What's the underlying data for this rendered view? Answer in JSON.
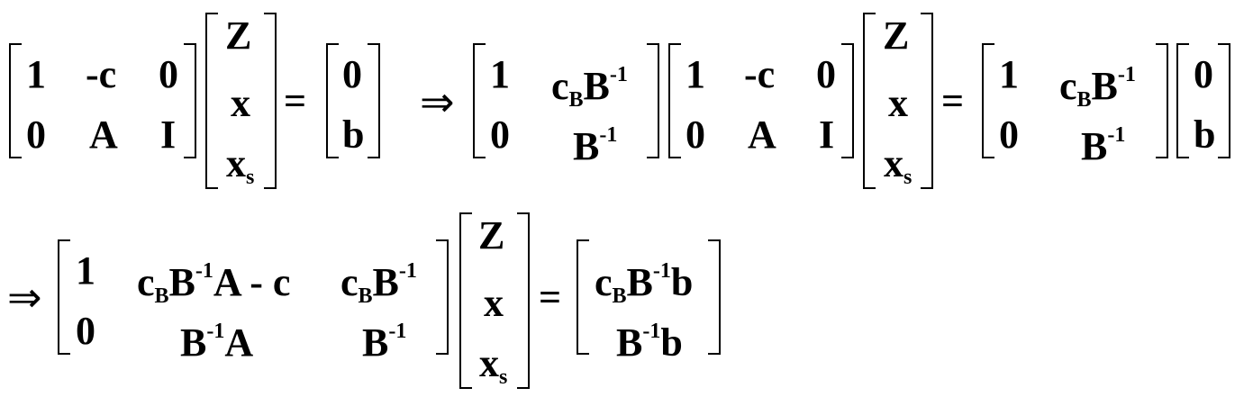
{
  "row1": {
    "m1": [
      [
        "1",
        "-c",
        "0"
      ],
      [
        "0",
        "A",
        "I"
      ]
    ],
    "v1": [
      "Z",
      "x",
      "x",
      "s"
    ],
    "eq": "=",
    "rhs1": [
      "0",
      "b"
    ],
    "arrow": "⇒",
    "m2": {
      "a11": "1",
      "a12_base": "c",
      "a12_sub": "B",
      "a12_B": "B",
      "a12_sup": "-1",
      "a21": "0",
      "a22_B": "B",
      "a22_sup": "-1"
    },
    "m3": [
      [
        "1",
        "-c",
        "0"
      ],
      [
        "0",
        "A",
        "I"
      ]
    ],
    "v2": [
      "Z",
      "x",
      "x",
      "s"
    ],
    "eq2": "=",
    "m4": {
      "a11": "1",
      "a12_base": "c",
      "a12_sub": "B",
      "a12_B": "B",
      "a12_sup": "-1",
      "a21": "0",
      "a22_B": "B",
      "a22_sup": "-1"
    },
    "rhs2": [
      "0",
      "b"
    ]
  },
  "row2": {
    "arrow": "⇒",
    "m": {
      "a11": "1",
      "a12": {
        "c": "c",
        "sub": "B",
        "B": "B",
        "sup": "-1",
        "rest": "A - c"
      },
      "a13": {
        "c": "c",
        "sub": "B",
        "B": "B",
        "sup": "-1"
      },
      "a21": "0",
      "a22": {
        "B": "B",
        "sup": "-1",
        "rest": "A"
      },
      "a23": {
        "B": "B",
        "sup": "-1"
      }
    },
    "v": [
      "Z",
      "x",
      "x",
      "s"
    ],
    "eq": "=",
    "rhs": {
      "r1": {
        "c": "c",
        "sub": "B",
        "B": "B",
        "sup": "-1",
        "rest": "b"
      },
      "r2": {
        "B": "B",
        "sup": "-1",
        "rest": "b"
      }
    }
  }
}
